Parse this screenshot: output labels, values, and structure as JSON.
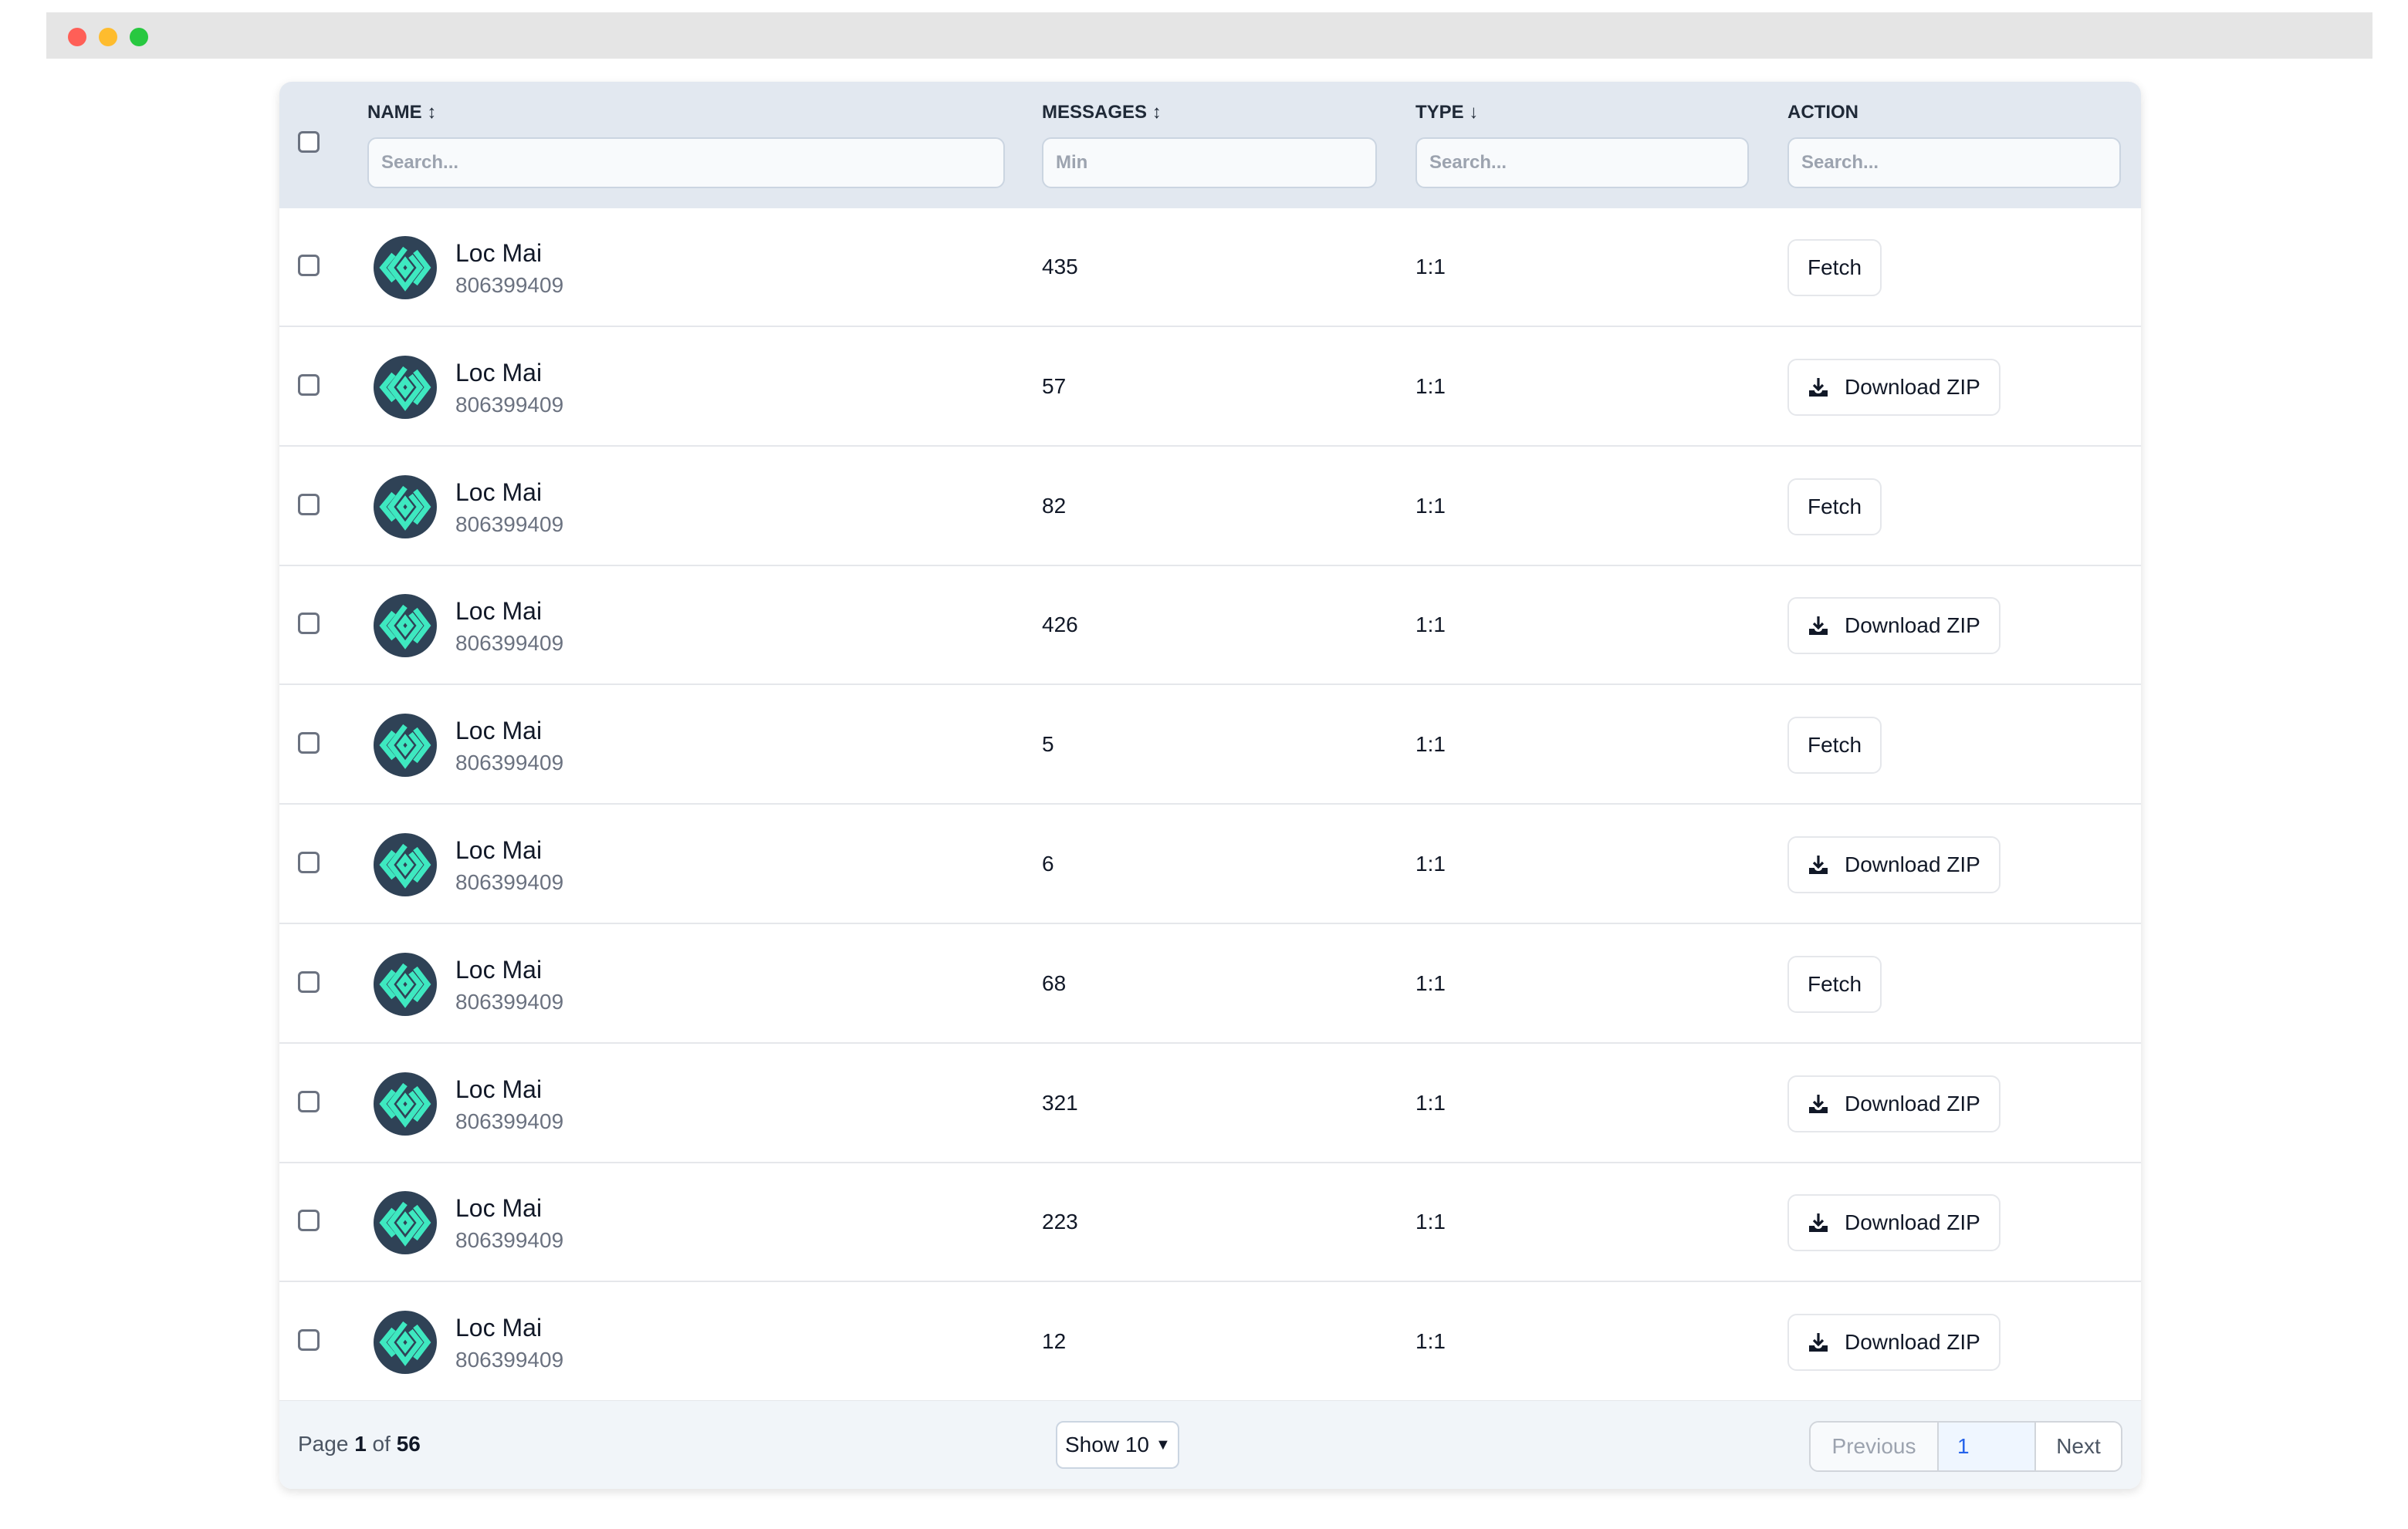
{
  "window": {
    "dots": [
      "#ff5f57",
      "#febc2e",
      "#28c840"
    ]
  },
  "header": {
    "columns": [
      {
        "label": "NAME",
        "sort": "sort-both-icon",
        "placeholder": "Search..."
      },
      {
        "label": "MESSAGES",
        "sort": "sort-both-icon",
        "placeholder": "Min"
      },
      {
        "label": "TYPE",
        "sort": "sort-down-icon",
        "placeholder": "Search..."
      },
      {
        "label": "ACTION",
        "placeholder": "Search..."
      }
    ]
  },
  "rows": [
    {
      "name": "Loc Mai",
      "id": "806399409",
      "messages": "435",
      "type": "1:1",
      "action": "Fetch"
    },
    {
      "name": "Loc Mai",
      "id": "806399409",
      "messages": "57",
      "type": "1:1",
      "action": "Download ZIP"
    },
    {
      "name": "Loc Mai",
      "id": "806399409",
      "messages": "82",
      "type": "1:1",
      "action": "Fetch"
    },
    {
      "name": "Loc Mai",
      "id": "806399409",
      "messages": "426",
      "type": "1:1",
      "action": "Download ZIP"
    },
    {
      "name": "Loc Mai",
      "id": "806399409",
      "messages": "5",
      "type": "1:1",
      "action": "Fetch"
    },
    {
      "name": "Loc Mai",
      "id": "806399409",
      "messages": "6",
      "type": "1:1",
      "action": "Download ZIP"
    },
    {
      "name": "Loc Mai",
      "id": "806399409",
      "messages": "68",
      "type": "1:1",
      "action": "Fetch"
    },
    {
      "name": "Loc Mai",
      "id": "806399409",
      "messages": "321",
      "type": "1:1",
      "action": "Download ZIP"
    },
    {
      "name": "Loc Mai",
      "id": "806399409",
      "messages": "223",
      "type": "1:1",
      "action": "Download ZIP"
    },
    {
      "name": "Loc Mai",
      "id": "806399409",
      "messages": "12",
      "type": "1:1",
      "action": "Download ZIP"
    }
  ],
  "footer": {
    "page_prefix": "Page",
    "page": "1",
    "of": "of",
    "total": "56",
    "show": "Show 10",
    "previous": "Previous",
    "current": "1",
    "next": "Next"
  },
  "colors": {
    "avatar_bg": "#2f4256",
    "avatar_mark": "#3ee8c0",
    "header_bg": "#e2e8f0"
  }
}
